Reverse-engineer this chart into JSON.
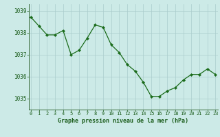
{
  "x": [
    0,
    1,
    2,
    3,
    4,
    5,
    6,
    7,
    8,
    9,
    10,
    11,
    12,
    13,
    14,
    15,
    16,
    17,
    18,
    19,
    20,
    21,
    22,
    23
  ],
  "y": [
    1038.7,
    1038.3,
    1037.9,
    1037.9,
    1038.1,
    1037.0,
    1037.2,
    1037.75,
    1038.35,
    1038.25,
    1037.45,
    1037.1,
    1036.55,
    1036.25,
    1035.75,
    1035.1,
    1035.1,
    1035.35,
    1035.5,
    1035.85,
    1036.1,
    1036.1,
    1036.35,
    1036.1
  ],
  "line_color": "#1a6b1a",
  "marker": "D",
  "marker_size": 2.2,
  "bg_color": "#cceae7",
  "grid_color": "#aacccc",
  "xlabel": "Graphe pression niveau de la mer (hPa)",
  "xlabel_color": "#1a5c1a",
  "tick_color": "#1a5c1a",
  "ylim": [
    1034.5,
    1039.3
  ],
  "yticks": [
    1035,
    1036,
    1037,
    1038,
    1039
  ],
  "xticks": [
    0,
    1,
    2,
    3,
    4,
    5,
    6,
    7,
    8,
    9,
    10,
    11,
    12,
    13,
    14,
    15,
    16,
    17,
    18,
    19,
    20,
    21,
    22,
    23
  ],
  "axis_color": "#336633",
  "bottom_bar_color": "#336633"
}
